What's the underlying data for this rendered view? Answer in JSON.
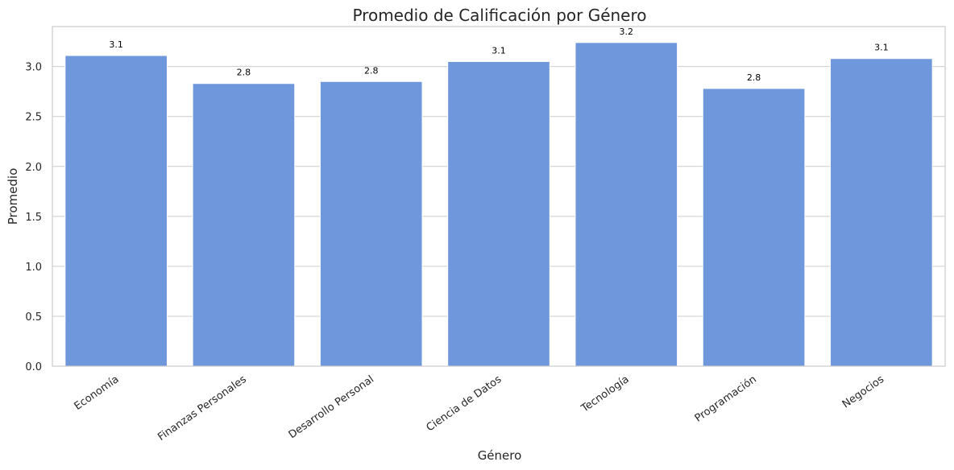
{
  "chart_data": {
    "type": "bar",
    "title": "Promedio de Calificación por Género",
    "xlabel": "Género",
    "ylabel": "Promedio",
    "categories": [
      "Economía",
      "Finanzas Personales",
      "Desarrollo Personal",
      "Ciencia de Datos",
      "Tecnología",
      "Programación",
      "Negocios"
    ],
    "values": [
      3.11,
      2.83,
      2.85,
      3.05,
      3.24,
      2.78,
      3.08
    ],
    "data_labels": [
      "3.1",
      "2.8",
      "2.8",
      "3.1",
      "3.2",
      "2.8",
      "3.1"
    ],
    "yticks": [
      0.0,
      0.5,
      1.0,
      1.5,
      2.0,
      2.5,
      3.0
    ],
    "ytick_labels": [
      "0.0",
      "0.5",
      "1.0",
      "1.5",
      "2.0",
      "2.5",
      "3.0"
    ],
    "ylim": [
      0,
      3.4
    ],
    "grid": true,
    "bar_color": "#6f98dc"
  }
}
